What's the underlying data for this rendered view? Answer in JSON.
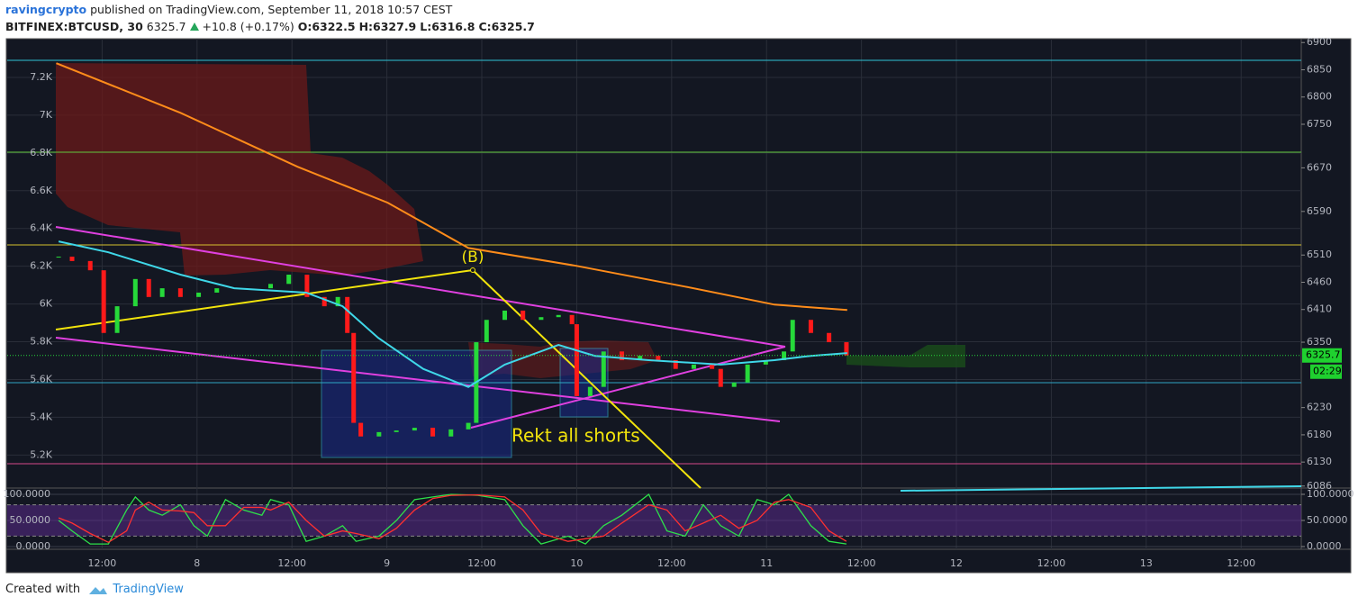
{
  "header": {
    "author": "ravingcrypto",
    "published": "published on TradingView.com, September 11, 2018 10:57 CEST"
  },
  "symbol": {
    "name": "BITFINEX:BTCUSD, 30",
    "last": "6325.7",
    "change": "+10.8 (+0.17%)",
    "ohlc": [
      "O:6322.5",
      "H:6327.9",
      "L:6316.8",
      "C:6325.7"
    ]
  },
  "chart_data": [
    {
      "type": "line",
      "xlim": [
        0,
        163.6
      ],
      "xticks": [
        {
          "value": 12,
          "label": "12:00"
        },
        {
          "value": 24,
          "label": "8"
        },
        {
          "value": 36,
          "label": "12:00"
        },
        {
          "value": 48,
          "label": "9"
        },
        {
          "value": 60,
          "label": "12:00"
        },
        {
          "value": 72,
          "label": "10"
        },
        {
          "value": 84,
          "label": "12:00"
        },
        {
          "value": 96,
          "label": "11"
        },
        {
          "value": 108,
          "label": "12:00"
        },
        {
          "value": 120,
          "label": "12"
        },
        {
          "value": 132,
          "label": "12:00"
        },
        {
          "value": 144,
          "label": "13"
        },
        {
          "value": 156,
          "label": "12:00"
        }
      ],
      "ylim": [
        5030,
        7405
      ],
      "yticks": [
        {
          "value": 5200,
          "label": "5.2K"
        },
        {
          "value": 5400,
          "label": "5.4K"
        },
        {
          "value": 5600,
          "label": "5.6K"
        },
        {
          "value": 5800,
          "label": "5.8K"
        },
        {
          "value": 6000,
          "label": "6K"
        },
        {
          "value": 6200,
          "label": "6.2K"
        },
        {
          "value": 6400,
          "label": "6.4K"
        },
        {
          "value": 6600,
          "label": "6.6K"
        },
        {
          "value": 6800,
          "label": "6.8K"
        },
        {
          "value": 7000,
          "label": "7K"
        },
        {
          "value": 7200,
          "label": "7.2K"
        }
      ],
      "y2lim": [
        6084,
        6907
      ],
      "y2ticks": [
        6086,
        6130,
        6180,
        6230,
        6350,
        6410,
        6460,
        6510,
        6590,
        6670,
        6750,
        6800,
        6850,
        6900
      ],
      "grid": true,
      "last_price": 6325.7,
      "countdown": "02:29",
      "annotations": [
        "(B)",
        "Rekt all shorts"
      ],
      "series": [
        {
          "style": "candle",
          "axis": "y2",
          "up_color": "#26d93a",
          "down_color": "#ff1a1a",
          "x": [
            6.5,
            8.2,
            10.5,
            12.2,
            13.9,
            16.2,
            17.9,
            19.6,
            21.9,
            24.2,
            26.5,
            29.9,
            33.3,
            35.6,
            37.9,
            40.1,
            41.8,
            43.0,
            43.8,
            44.7,
            47.0,
            49.2,
            51.5,
            53.8,
            56.1,
            58.3,
            59.3,
            60.6,
            62.9,
            65.2,
            67.5,
            69.7,
            71.4,
            72.0,
            73.7,
            75.4,
            77.7,
            80.0,
            82.3,
            84.5,
            86.8,
            89.1,
            90.2,
            91.9,
            93.6,
            95.9,
            98.2,
            99.3,
            101.6,
            103.9,
            106.1
          ],
          "values": [
            6507,
            6499,
            6482,
            6367,
            6416,
            6466,
            6433,
            6449,
            6433,
            6441,
            6449,
            6449,
            6457,
            6474,
            6433,
            6416,
            6433,
            6367,
            6202,
            6177,
            6185,
            6188,
            6193,
            6177,
            6190,
            6202,
            6350,
            6391,
            6408,
            6391,
            6396,
            6400,
            6383,
            6251,
            6268,
            6333,
            6317,
            6325,
            6317,
            6301,
            6309,
            6301,
            6268,
            6276,
            6309,
            6317,
            6333,
            6391,
            6367,
            6350,
            6325.7
          ]
        },
        {
          "style": "line",
          "axis": "y2",
          "color": "#ff8c1a",
          "x": [
            6.2,
            21.9,
            36.7,
            48.1,
            58.3,
            72.0,
            85.7,
            97.0,
            106.2
          ],
          "values": [
            6862,
            6771,
            6672,
            6606,
            6523,
            6490,
            6452,
            6419,
            6409
          ]
        },
        {
          "style": "line",
          "axis": "y2",
          "color": "#3fd7e8",
          "x": [
            6.5,
            12.8,
            21.9,
            28.7,
            37.8,
            42.4,
            46.9,
            52.6,
            58.3,
            62.9,
            69.7,
            74.3,
            81.1,
            90.2,
            97.0,
            101.6,
            106.2
          ],
          "values": [
            6535,
            6515,
            6474,
            6449,
            6441,
            6416,
            6358,
            6301,
            6268,
            6309,
            6345,
            6325,
            6317,
            6309,
            6317,
            6325,
            6330
          ]
        }
      ]
    },
    {
      "type": "line",
      "xlim": [
        0,
        163.6
      ],
      "ylim": [
        -5.2,
        110.3
      ],
      "yticks": [
        {
          "value": 0,
          "label": "0.0000"
        },
        {
          "value": 50,
          "label": "50.0000"
        },
        {
          "value": 100,
          "label": "100.0000"
        }
      ],
      "series": [
        {
          "color": "#2ee04a",
          "x": [
            6.5,
            8.2,
            10.5,
            12.8,
            15.1,
            16.2,
            17.9,
            19.6,
            21.9,
            23.6,
            25.3,
            27.6,
            29.9,
            32.2,
            33.3,
            35.6,
            37.8,
            40.1,
            42.4,
            44.1,
            47.0,
            49.2,
            51.5,
            53.8,
            56.1,
            59.5,
            62.9,
            65.2,
            67.5,
            70.9,
            73.1,
            75.4,
            77.7,
            81.1,
            83.4,
            85.7,
            88.0,
            90.2,
            92.5,
            94.8,
            97.0,
            98.8,
            101.6,
            103.9,
            106.1
          ],
          "values": [
            50,
            30,
            5,
            5,
            70,
            95,
            70,
            60,
            80,
            40,
            20,
            90,
            70,
            60,
            90,
            80,
            10,
            20,
            40,
            10,
            20,
            50,
            90,
            95,
            100,
            98,
            90,
            40,
            5,
            20,
            5,
            40,
            60,
            100,
            30,
            20,
            80,
            40,
            20,
            90,
            80,
            100,
            40,
            10,
            5
          ]
        },
        {
          "color": "#ff3030",
          "x": [
            6.5,
            8.2,
            10.5,
            12.8,
            15.1,
            16.2,
            17.9,
            19.6,
            21.9,
            23.6,
            25.3,
            27.6,
            29.9,
            32.2,
            33.3,
            35.6,
            37.8,
            40.1,
            42.4,
            44.1,
            47.0,
            49.2,
            51.5,
            53.8,
            56.1,
            59.5,
            62.9,
            65.2,
            67.5,
            70.9,
            73.1,
            75.4,
            77.7,
            81.1,
            83.4,
            85.7,
            88.0,
            90.2,
            92.5,
            94.8,
            97.0,
            98.8,
            101.6,
            103.9,
            106.1
          ],
          "values": [
            55,
            45,
            25,
            8,
            30,
            70,
            85,
            70,
            68,
            65,
            40,
            40,
            75,
            75,
            70,
            85,
            50,
            20,
            30,
            25,
            15,
            35,
            70,
            92,
            98,
            99,
            95,
            70,
            25,
            10,
            15,
            20,
            45,
            80,
            70,
            30,
            45,
            60,
            35,
            50,
            85,
            90,
            75,
            30,
            10
          ]
        }
      ]
    }
  ],
  "footer": {
    "created": "Created with",
    "brand": "TradingView"
  }
}
